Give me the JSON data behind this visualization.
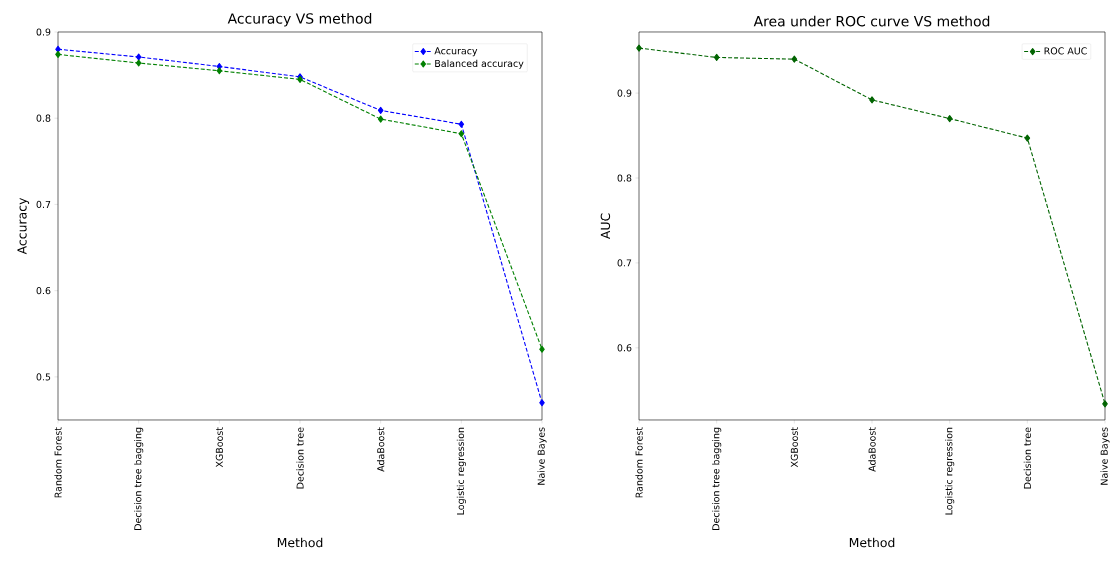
{
  "chart_data": [
    {
      "type": "line",
      "title": "Accuracy VS method",
      "xlabel": "Method",
      "ylabel": "Accuracy",
      "categories": [
        "Random Forest",
        "Decision tree bagging",
        "XGBoost",
        "Decision tree",
        "AdaBoost",
        "Logistic regression",
        "Naive Bayes"
      ],
      "series": [
        {
          "name": "Accuracy",
          "color": "#0000ff",
          "values": [
            0.88,
            0.871,
            0.86,
            0.848,
            0.809,
            0.793,
            0.47
          ]
        },
        {
          "name": "Balanced accuracy",
          "color": "#008000",
          "values": [
            0.874,
            0.864,
            0.855,
            0.845,
            0.799,
            0.782,
            0.532
          ]
        }
      ],
      "ylim": [
        0.45,
        0.9
      ],
      "yticks": [
        0.5,
        0.6,
        0.7,
        0.8,
        0.9
      ],
      "marker": "diamond",
      "line_style": "dashed",
      "legend": "top right",
      "grid": false
    },
    {
      "type": "line",
      "title": "Area under ROC curve VS method",
      "xlabel": "Method",
      "ylabel": "AUC",
      "categories": [
        "Random Forest",
        "Decision tree bagging",
        "XGBoost",
        "AdaBoost",
        "Logistic regression",
        "Decision tree",
        "Naive Bayes"
      ],
      "series": [
        {
          "name": "ROC AUC",
          "color": "#006400",
          "values": [
            0.953,
            0.942,
            0.94,
            0.892,
            0.87,
            0.847,
            0.534
          ]
        }
      ],
      "ylim": [
        0.515,
        0.972
      ],
      "yticks": [
        0.6,
        0.7,
        0.8,
        0.9
      ],
      "marker": "diamond",
      "line_style": "dashed",
      "legend": "top right",
      "grid": false
    }
  ]
}
